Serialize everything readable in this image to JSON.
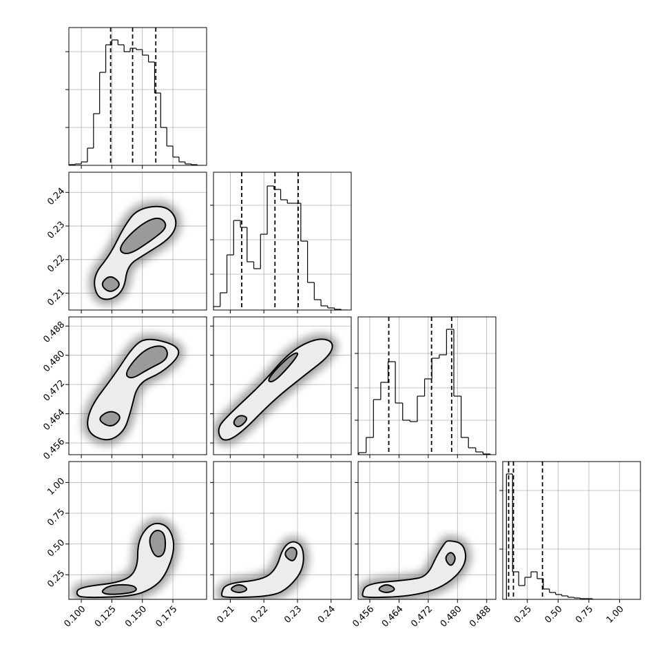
{
  "chart_data": {
    "type": "corner",
    "parameters": [
      {
        "lim": [
          0.0898,
          0.2026
        ],
        "ticks": [
          {
            "value": 0.1,
            "label": "0.100"
          },
          {
            "value": 0.125,
            "label": "0.125"
          },
          {
            "value": 0.15,
            "label": "0.150"
          },
          0.175
        ],
        "bins": [
          0.09,
          0.095,
          0.1,
          0.105,
          0.11,
          0.115,
          0.12,
          0.125,
          0.13,
          0.135,
          0.14,
          0.145,
          0.15,
          0.155,
          0.16,
          0.165,
          0.17,
          0.175,
          0.18,
          0.185,
          0.19,
          0.195,
          0.2
        ],
        "counts": [
          1,
          2,
          5,
          25,
          75,
          135,
          175,
          182,
          175,
          165,
          170,
          168,
          160,
          150,
          105,
          55,
          28,
          12,
          5,
          2,
          1,
          0
        ],
        "hist_ylim": [
          0,
          200
        ],
        "hist_yticks": [
          55,
          110,
          165
        ],
        "quantiles": [
          0.124,
          0.142,
          0.161
        ]
      },
      {
        "lim": [
          0.205,
          0.246
        ],
        "ticks": [
          0.21,
          0.22,
          0.23,
          0.24
        ],
        "bins": [
          0.205,
          0.207,
          0.209,
          0.211,
          0.213,
          0.215,
          0.217,
          0.219,
          0.221,
          0.223,
          0.225,
          0.227,
          0.229,
          0.231,
          0.233,
          0.235,
          0.237,
          0.239,
          0.241,
          0.243,
          0.245
        ],
        "counts": [
          5,
          25,
          80,
          130,
          120,
          70,
          60,
          110,
          180,
          175,
          160,
          155,
          155,
          100,
          40,
          15,
          6,
          3,
          1,
          0
        ],
        "hist_ylim": [
          0,
          200
        ],
        "hist_yticks": [
          52,
          102,
          152
        ],
        "quantiles": [
          0.2134,
          0.2233,
          0.2302
        ]
      },
      {
        "lim": [
          0.4528,
          0.4905
        ],
        "ticks": [
          0.456,
          0.464,
          0.472,
          {
            "value": 0.48,
            "label": "0.480"
          },
          0.488
        ],
        "bins": [
          0.453,
          0.455,
          0.457,
          0.459,
          0.461,
          0.463,
          0.465,
          0.467,
          0.469,
          0.471,
          0.473,
          0.475,
          0.477,
          0.479,
          0.481,
          0.483,
          0.485,
          0.487,
          0.489
        ],
        "counts": [
          3,
          25,
          80,
          105,
          135,
          75,
          50,
          48,
          85,
          110,
          140,
          145,
          182,
          85,
          25,
          10,
          4,
          1
        ],
        "hist_ylim": [
          0,
          200
        ],
        "hist_yticks": [
          50,
          97,
          147
        ],
        "quantiles": [
          0.4612,
          0.4729,
          0.4784
        ]
      },
      {
        "lim": [
          0.05,
          1.17
        ],
        "ticks": [
          0.25,
          {
            "value": 0.5,
            "label": "0.50"
          },
          0.75,
          {
            "value": 1.0,
            "label": "1.00"
          }
        ],
        "bins": [
          0.08,
          0.13,
          0.18,
          0.23,
          0.28,
          0.33,
          0.38,
          0.43,
          0.48,
          0.53,
          0.58,
          0.63,
          0.68,
          0.73,
          0.78,
          0.83,
          0.88,
          0.93
        ],
        "counts": [
          182,
          40,
          20,
          32,
          40,
          30,
          15,
          10,
          7,
          5,
          3,
          2,
          1,
          1,
          0,
          0,
          0
        ],
        "hist_ylim": [
          0,
          200
        ],
        "hist_yticks": [
          73,
          158
        ],
        "quantiles": [
          0.098,
          0.137,
          0.373
        ]
      }
    ],
    "pairs": [
      [
        {
          "contours": [
            {
              "x": [
                0.1124,
                0.1096,
                0.1237,
                0.135,
                0.1462,
                0.1688,
                0.179,
                0.1745,
                0.1519,
                0.1378,
                0.135,
                0.1237
              ],
              "y": [
                0.2088,
                0.2152,
                0.2215,
                0.2299,
                0.2352,
                0.2362,
                0.232,
                0.2267,
                0.2215,
                0.2183,
                0.2109,
                0.2078
              ]
            },
            {
              "x": [
                0.1152,
                0.1237,
                0.1333,
                0.1237
              ],
              "y": [
                0.2126,
                0.2156,
                0.2126,
                0.2099
              ]
            },
            {
              "x": [
                0.1293,
                0.1462,
                0.1632,
                0.1716,
                0.1575,
                0.1378
              ],
              "y": [
                0.2232,
                0.2299,
                0.2331,
                0.2299,
                0.2257,
                0.2211
              ]
            }
          ]
        }
      ],
      [
        {
          "contours": [
            {
              "x": [
                0.1039,
                0.1068,
                0.1265,
                0.1434,
                0.1547,
                0.1773,
                0.1812,
                0.166,
                0.1462,
                0.1406,
                0.135,
                0.1209
              ],
              "y": [
                0.459,
                0.4657,
                0.4743,
                0.4829,
                0.4848,
                0.4829,
                0.48,
                0.4752,
                0.4724,
                0.4648,
                0.459,
                0.4562
              ]
            },
            {
              "x": [
                0.1124,
                0.1237,
                0.1338,
                0.1248
              ],
              "y": [
                0.4625,
                0.4651,
                0.4632,
                0.46
              ]
            },
            {
              "x": [
                0.135,
                0.1519,
                0.1688,
                0.1716,
                0.1547,
                0.1406
              ],
              "y": [
                0.4752,
                0.4819,
                0.4829,
                0.479,
                0.4762,
                0.4733
              ]
            }
          ]
        },
        {
          "contours": [
            {
              "x": [
                0.206,
                0.2096,
                0.2197,
                0.2277,
                0.2358,
                0.2408,
                0.2398,
                0.2318,
                0.2227,
                0.2126,
                0.2076
              ],
              "y": [
                0.46,
                0.4638,
                0.4724,
                0.481,
                0.4848,
                0.4838,
                0.48,
                0.4743,
                0.4676,
                0.4581,
                0.4562
              ]
            },
            {
              "x": [
                0.2106,
                0.2126,
                0.2156,
                0.2126
              ],
              "y": [
                0.4615,
                0.4638,
                0.4629,
                0.46
              ]
            },
            {
              "x": [
                0.2207,
                0.2277,
                0.2308,
                0.2277,
                0.2227
              ],
              "y": [
                0.4733,
                0.48,
                0.481,
                0.4771,
                0.4724
              ]
            }
          ]
        }
      ],
      [
        {
          "contours": [
            {
              "x": [
                0.0955,
                0.0983,
                0.135,
                0.1462,
                0.1462,
                0.1575,
                0.1716,
                0.1773,
                0.1688,
                0.1575,
                0.1406,
                0.1011
              ],
              "y": [
                0.091,
                0.15,
                0.191,
                0.297,
                0.532,
                0.679,
                0.65,
                0.474,
                0.238,
                0.132,
                0.074,
                0.062
              ]
            },
            {
              "x": [
                0.1152,
                0.1237,
                0.1434,
                0.1462,
                0.1237
              ],
              "y": [
                0.109,
                0.168,
                0.168,
                0.109,
                0.085
              ]
            },
            {
              "x": [
                0.1547,
                0.1603,
                0.1688,
                0.1688,
                0.1603
              ],
              "y": [
                0.532,
                0.621,
                0.591,
                0.415,
                0.385
              ]
            }
          ]
        },
        {
          "contours": [
            {
              "x": [
                0.2072,
                0.2086,
                0.2197,
                0.2237,
                0.2257,
                0.2288,
                0.2318,
                0.2318,
                0.2277,
                0.2227,
                0.208
              ],
              "y": [
                0.091,
                0.179,
                0.209,
                0.297,
                0.474,
                0.532,
                0.474,
                0.297,
                0.15,
                0.074,
                0.062
              ]
            },
            {
              "x": [
                0.2096,
                0.2126,
                0.2156,
                0.2126
              ],
              "y": [
                0.132,
                0.179,
                0.132,
                0.097
              ]
            },
            {
              "x": [
                0.2257,
                0.2281,
                0.2302,
                0.2288
              ],
              "y": [
                0.415,
                0.485,
                0.444,
                0.344
              ]
            }
          ]
        },
        {
          "contours": [
            {
              "x": [
                0.4538,
                0.4551,
                0.4671,
                0.4717,
                0.4745,
                0.4764,
                0.4773,
                0.4819,
                0.4825,
                0.4764,
                0.4671,
                0.4545
              ],
              "y": [
                0.091,
                0.179,
                0.209,
                0.238,
                0.415,
                0.503,
                0.532,
                0.503,
                0.327,
                0.15,
                0.074,
                0.062
              ]
            },
            {
              "x": [
                0.4579,
                0.4606,
                0.4634,
                0.4606
              ],
              "y": [
                0.132,
                0.179,
                0.132,
                0.097
              ]
            },
            {
              "x": [
                0.4764,
                0.4782,
                0.4797,
                0.4782
              ],
              "y": [
                0.385,
                0.444,
                0.385,
                0.309
              ]
            }
          ]
        }
      ]
    ]
  }
}
